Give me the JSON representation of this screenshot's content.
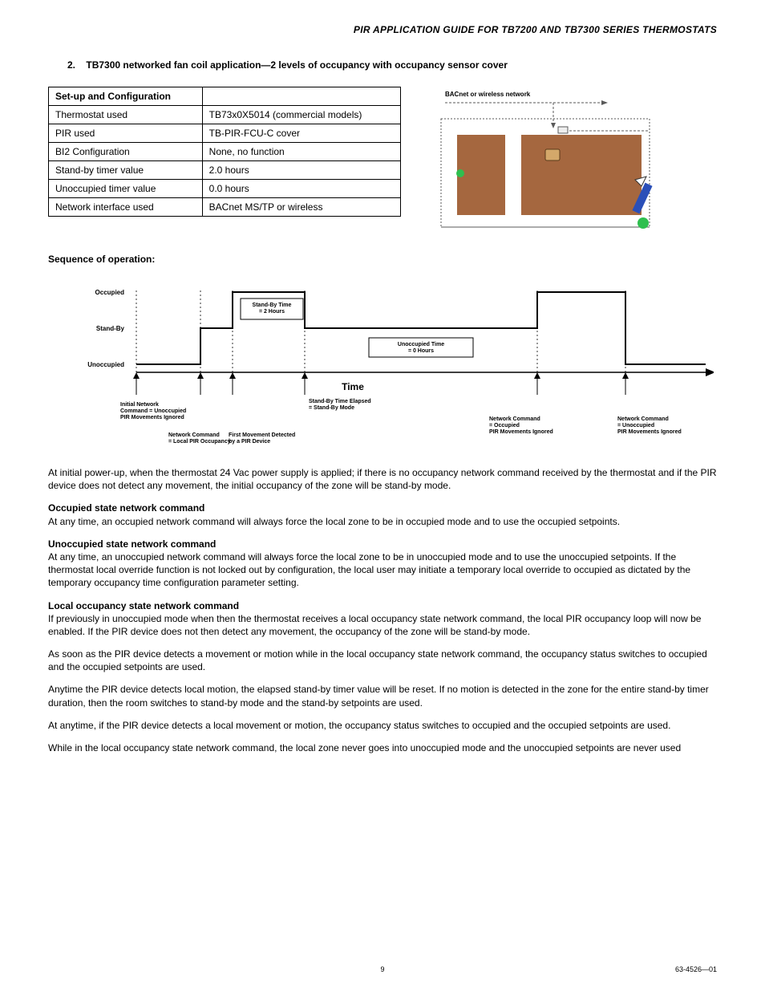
{
  "header": {
    "title": "PIR APPLICATION GUIDE FOR TB7200 AND TB7300 SERIES THERMOSTATS"
  },
  "section": {
    "number": "2.",
    "title": "TB7300 networked fan coil application—2 levels of occupancy with occupancy sensor cover"
  },
  "config_table": {
    "header_col": "Set-up and Configuration",
    "rows": [
      {
        "label": "Thermostat used",
        "value": "TB73x0X5014 (commercial models)"
      },
      {
        "label": "PIR used",
        "value": "TB-PIR-FCU-C cover"
      },
      {
        "label": "BI2 Configuration",
        "value": "None, no function"
      },
      {
        "label": "Stand-by timer value",
        "value": "2.0 hours"
      },
      {
        "label": "Unoccupied timer value",
        "value": "0.0 hours"
      },
      {
        "label": "Network interface used",
        "value": "BACnet MS/TP or wireless"
      }
    ]
  },
  "net_diagram": {
    "label": "BACnet or wireless network",
    "colors": {
      "floor": "#a5673f",
      "wall": "#8b5a2b",
      "tstat": "#d4a86a",
      "line": "#5a5a5a",
      "pen_body": "#2a4fb8",
      "pen_tip": "#ffffff",
      "sensor": "#2fbf4f",
      "ceiling_sensor": "#2fbf4f"
    }
  },
  "sequence": {
    "heading": "Sequence of operation:",
    "y_labels": {
      "occupied": "Occupied",
      "standby": "Stand-By",
      "unoccupied": "Unoccupied"
    },
    "x_label": "Time",
    "box_standby": "Stand-By Time\n= 2 Hours",
    "box_unocc": "Unoccupied Time\n= 0 Hours",
    "events": {
      "e1": "Initial Network\nCommand = Unoccupied\nPIR Movements Ignored",
      "e2": "Network Command\n= Local PIR Occupancy",
      "e3": "First Movement Detected\nby a PIR Device",
      "e4": "Stand-By Time Elapsed\n= Stand-By Mode",
      "e5": "Network Command\n= Occupied\nPIR Movements Ignored",
      "e6": "Network Command\n= Unoccupied\nPIR Movements Ignored"
    },
    "colors": {
      "line": "#000000",
      "bg": "#ffffff"
    }
  },
  "body": {
    "p1": "At initial power-up, when the thermostat 24 Vac power supply is applied; if there is no occupancy network command received by the thermostat and if the PIR device does not detect any movement, the initial occupancy of the zone will be stand-by mode.",
    "h2": "Occupied state network command",
    "p2": "At any time, an occupied network command will always force the local zone to be in occupied mode and to use the occupied setpoints.",
    "h3": "Unoccupied state network command",
    "p3": "At any time, an unoccupied network command will always force the local zone to be in unoccupied mode and to use the unoccupied setpoints. If the thermostat local override function is not locked out by configuration, the local user may initiate a temporary local override to occupied as dictated by the temporary occupancy time configuration parameter setting.",
    "h4": "Local occupancy state network command",
    "p4": "If previously in unoccupied mode when then the thermostat receives a local occupancy state network command, the local PIR occupancy loop will now be enabled. If the PIR device does not then detect any movement, the occupancy of the zone will be stand-by mode.",
    "p5": "As soon as the PIR device detects a movement or motion while in the local occupancy state network command, the occupancy status switches to occupied and the occupied setpoints are used.",
    "p6": "Anytime the PIR device detects local motion, the elapsed stand-by timer value will be reset. If no motion is detected in the zone for the entire stand-by timer duration, then the room switches to stand-by mode and the stand-by setpoints are used.",
    "p7": "At anytime, if the PIR device detects a local movement or motion, the occupancy status switches to occupied and the occupied setpoints are used.",
    "p8": "While in the local occupancy state network command, the local zone never goes into unoccupied mode and the unoccupied setpoints are never used"
  },
  "footer": {
    "page": "9",
    "doc": "63-4526—01"
  }
}
